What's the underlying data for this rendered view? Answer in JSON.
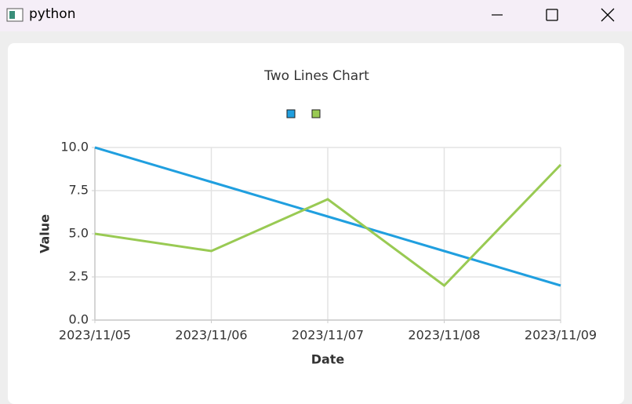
{
  "window": {
    "title": "python"
  },
  "chart_data": {
    "type": "line",
    "title": "Two Lines Chart",
    "x_label": "Date",
    "y_label": "Value",
    "categories": [
      "2023/11/05",
      "2023/11/06",
      "2023/11/07",
      "2023/11/08",
      "2023/11/09"
    ],
    "series": [
      {
        "color": "#209fdf",
        "values": [
          10,
          8,
          6,
          4,
          2
        ]
      },
      {
        "color": "#99ca53",
        "values": [
          5,
          4,
          7,
          2,
          9
        ]
      }
    ],
    "ylim": [
      0,
      10
    ],
    "yticks": [
      {
        "value": 0,
        "label": "0.0"
      },
      2.5,
      {
        "value": 5,
        "label": "5.0"
      },
      7.5,
      {
        "value": 10,
        "label": "10.0"
      }
    ],
    "grid": true
  }
}
